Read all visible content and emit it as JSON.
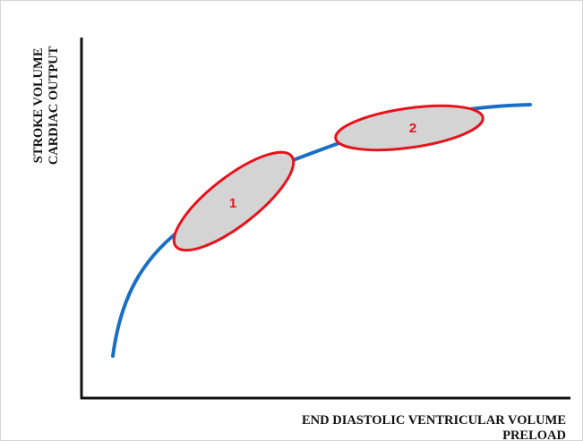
{
  "axes": {
    "y_label_line1": "STROKE VOLUME",
    "y_label_line2": "CARDIAC OUTPUT",
    "x_label_line1": "END DIASTOLIC VENTRICULAR VOLUME",
    "x_label_line2": "PRELOAD"
  },
  "regions": [
    {
      "label": "1"
    },
    {
      "label": "2"
    }
  ],
  "colors": {
    "curve": "#1a6fc4",
    "region_outline": "#e8121b",
    "region_fill": "#d4d4d4",
    "region_text": "#e8121b",
    "axis": "#111111"
  }
}
